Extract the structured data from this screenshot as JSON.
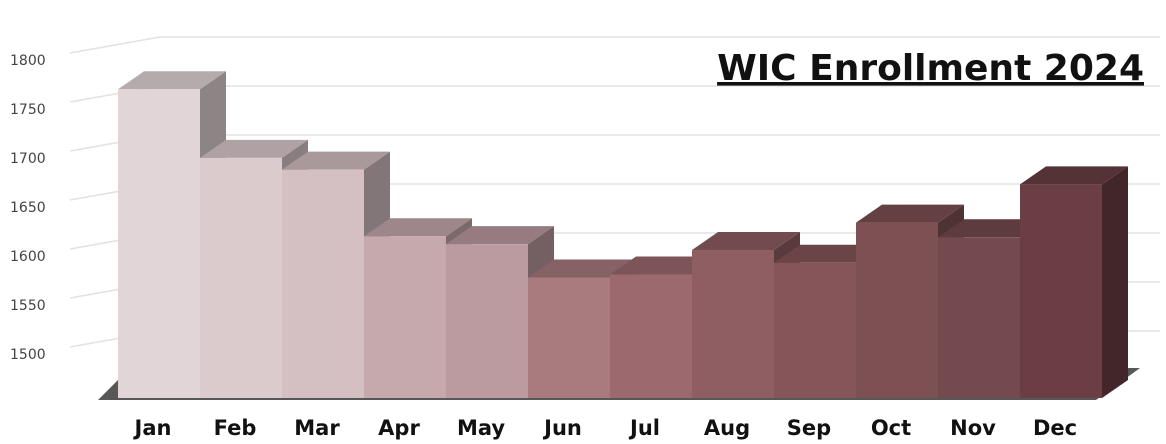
{
  "chart_data": {
    "type": "bar3d",
    "title": "WIC Enrollment 2024",
    "categories": [
      "Jan",
      "Feb",
      "Mar",
      "Apr",
      "May",
      "Jun",
      "Jul",
      "Aug",
      "Sep",
      "Oct",
      "Nov",
      "Dec"
    ],
    "values": [
      1765,
      1695,
      1683,
      1615,
      1607,
      1573,
      1576,
      1601,
      1588,
      1629,
      1614,
      1668
    ],
    "colors": [
      "#e2d5d7",
      "#dccbcd",
      "#d4bfc2",
      "#c6a9ad",
      "#bb9ba0",
      "#a97a7e",
      "#9c6a6e",
      "#8f5e62",
      "#865559",
      "#7d5054",
      "#754a4e",
      "#6a3e43"
    ],
    "ylim": [
      1450,
      1800
    ],
    "yticks": [
      1500,
      1550,
      1600,
      1650,
      1700,
      1750,
      1800
    ],
    "grid": true
  }
}
